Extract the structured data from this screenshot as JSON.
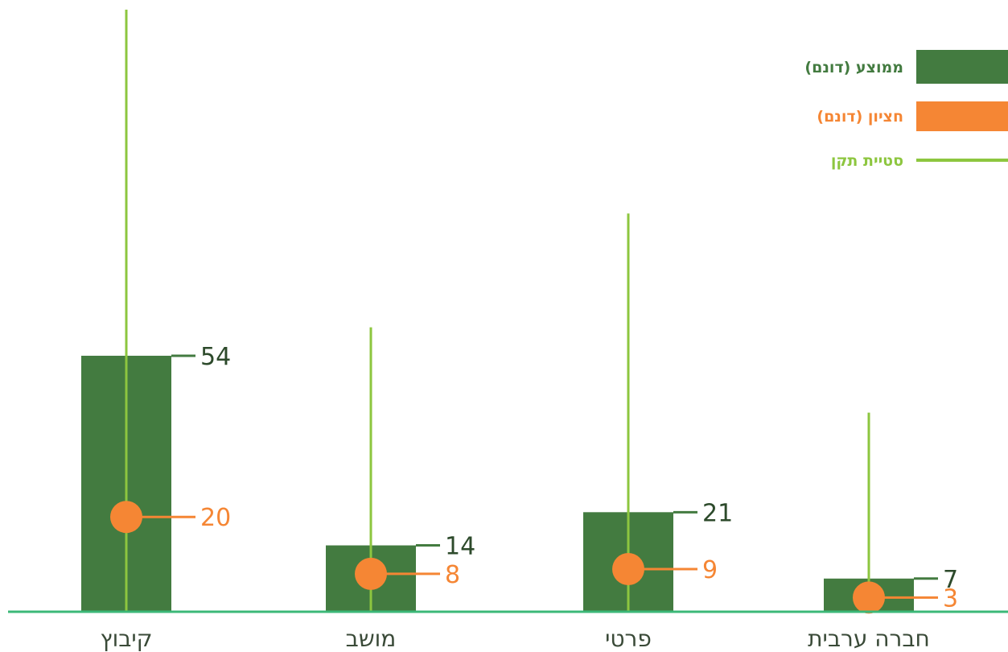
{
  "chart_data": {
    "type": "bar",
    "categories": [
      "קיבוץ",
      "מושב",
      "פרטי",
      "חברה ערבית"
    ],
    "series": [
      {
        "name": "ממוצע (דונם)",
        "values": [
          54,
          14,
          21,
          7
        ],
        "color": "#437b40"
      },
      {
        "name": "חציון (דונם)",
        "values": [
          20,
          8,
          9,
          3
        ],
        "color": "#f58634"
      }
    ],
    "error": {
      "name": "סטיית תקן",
      "color": "#8dc63f",
      "upper": [
        127,
        60,
        84,
        42
      ],
      "lower": [
        0,
        0,
        0,
        0
      ]
    },
    "ylim": [
      0,
      127
    ],
    "grid": false,
    "legend_position": "top-right",
    "axis_color": "#3cb878"
  }
}
